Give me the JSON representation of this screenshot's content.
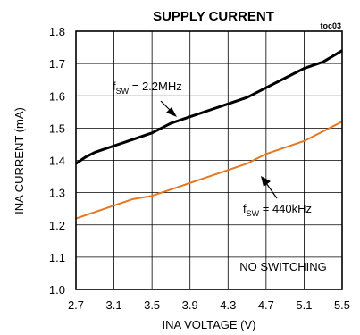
{
  "chart_data": {
    "type": "line",
    "title": "SUPPLY CURRENT",
    "figure_id": "toc03",
    "xlabel": "INA VOLTAGE (V)",
    "ylabel": "INA CURRENT (mA)",
    "xlim": [
      2.7,
      5.5
    ],
    "ylim": [
      1.0,
      1.8
    ],
    "xticks": [
      "2.7",
      "3.1",
      "3.5",
      "3.9",
      "4.3",
      "4.7",
      "5.1",
      "5.5"
    ],
    "yticks": [
      "1.0",
      "1.1",
      "1.2",
      "1.3",
      "1.4",
      "1.5",
      "1.6",
      "1.7",
      "1.8"
    ],
    "grid": true,
    "legend": "none",
    "series": [
      {
        "color": "#000000",
        "x": [
          2.7,
          2.8,
          2.9,
          3.1,
          3.3,
          3.5,
          3.7,
          3.9,
          4.1,
          4.3,
          4.5,
          4.7,
          4.9,
          5.1,
          5.3,
          5.5
        ],
        "y": [
          1.39,
          1.41,
          1.425,
          1.445,
          1.465,
          1.485,
          1.515,
          1.535,
          1.555,
          1.575,
          1.595,
          1.625,
          1.655,
          1.685,
          1.705,
          1.74
        ]
      },
      {
        "color": "#E8761E",
        "x": [
          2.7,
          2.9,
          3.1,
          3.3,
          3.5,
          3.7,
          3.9,
          4.1,
          4.3,
          4.5,
          4.7,
          4.9,
          5.1,
          5.3,
          5.5
        ],
        "y": [
          1.22,
          1.24,
          1.26,
          1.28,
          1.29,
          1.31,
          1.33,
          1.35,
          1.37,
          1.39,
          1.42,
          1.44,
          1.46,
          1.49,
          1.52
        ]
      }
    ],
    "annotations": [
      {
        "main": "f",
        "sub": "SW",
        "rest": " = 2.2MHz"
      },
      {
        "main": "f",
        "sub": "SW",
        "rest": " = 440kHz"
      },
      {
        "text": "NO SWITCHING"
      }
    ]
  }
}
